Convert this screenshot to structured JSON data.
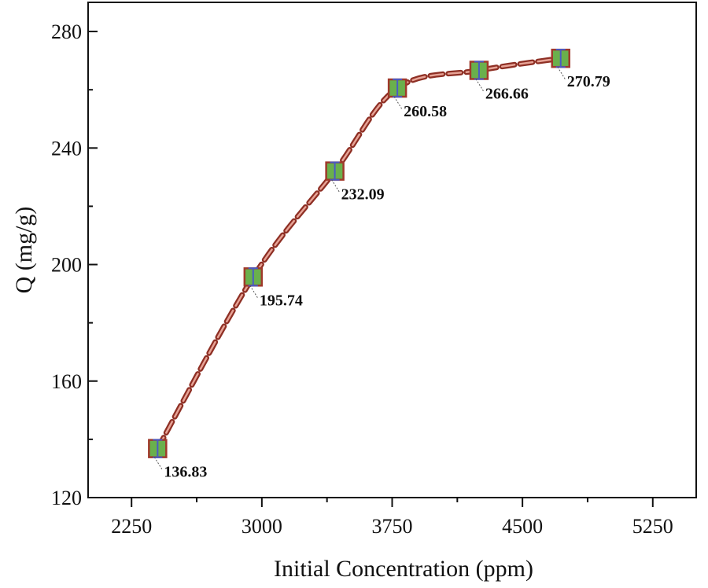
{
  "chart_data": {
    "type": "line",
    "title": "",
    "xlabel": "Initial Concentration (ppm)",
    "ylabel": "Q (mg/g)",
    "xlim": [
      2000,
      5500
    ],
    "ylim": [
      120,
      290
    ],
    "x_ticks": [
      2250,
      3000,
      3750,
      4500,
      5250
    ],
    "x_tick_labels": [
      "2250",
      "3000",
      "3750",
      "4500",
      "5250"
    ],
    "y_ticks": [
      120,
      160,
      200,
      240,
      280
    ],
    "y_tick_labels": [
      "120",
      "160",
      "200",
      "240",
      "280"
    ],
    "grid": false,
    "series": [
      {
        "name": "Q",
        "x": [
          2400,
          2950,
          3420,
          3780,
          4250,
          4720
        ],
        "y": [
          136.83,
          195.74,
          232.09,
          260.58,
          266.66,
          270.79
        ],
        "labels": [
          "136.83",
          "195.74",
          "232.09",
          "260.58",
          "266.66",
          "270.79"
        ],
        "error": [
          3,
          3,
          3,
          3,
          3,
          3
        ],
        "line_style": "dashed",
        "line_color": "#b5473b",
        "marker": "square",
        "marker_fill": "#6ab04c",
        "marker_edge": "#a0392b",
        "error_color": "#4a5bc4"
      }
    ]
  }
}
